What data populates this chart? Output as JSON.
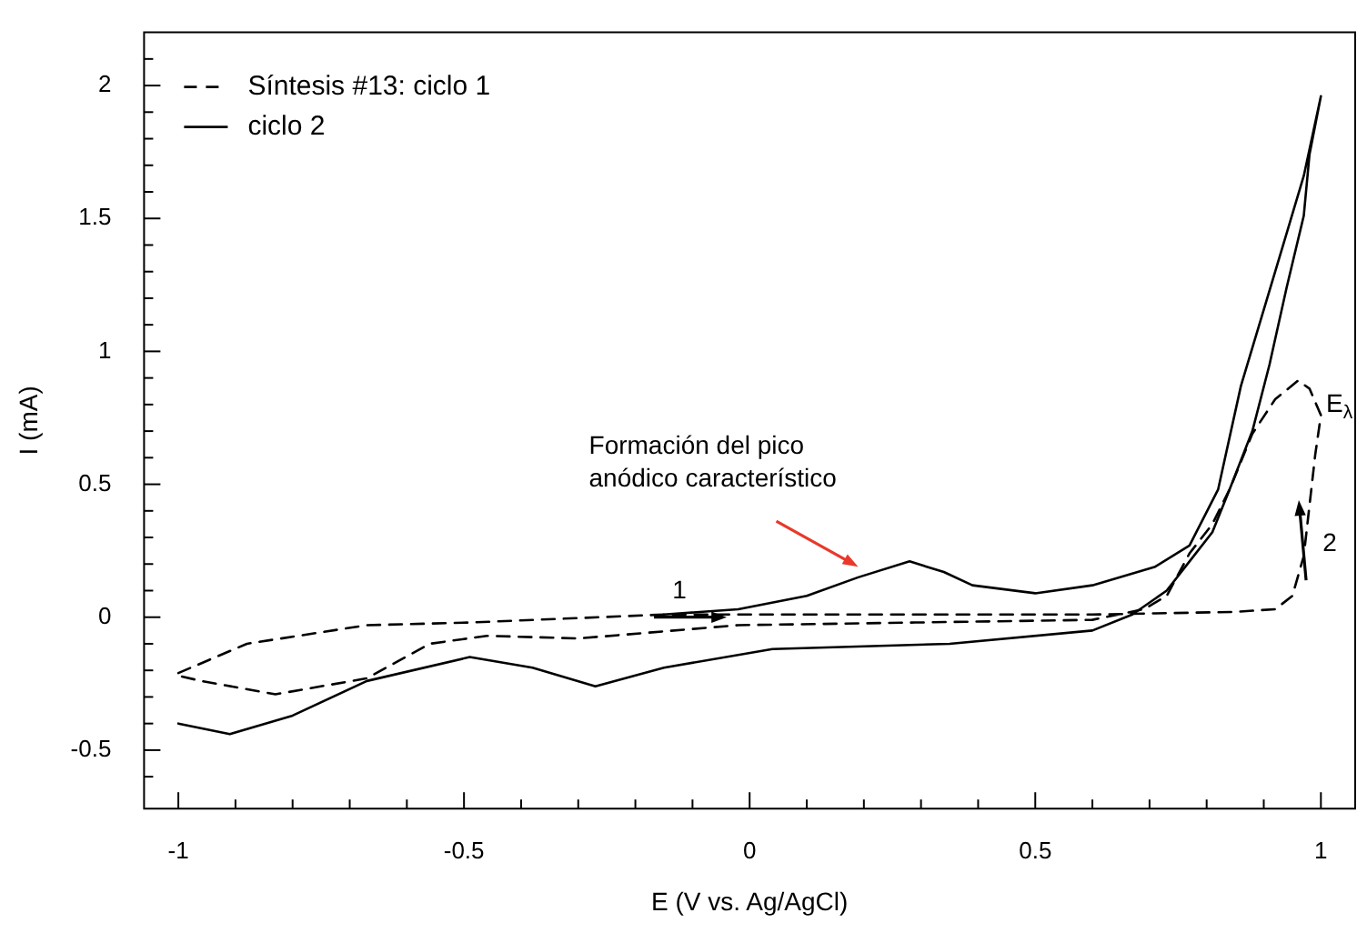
{
  "chart_data": {
    "type": "line",
    "xlabel": "E (V vs. Ag/AgCl)",
    "ylabel": "I (mA)",
    "xlim": [
      -1.06,
      1.06
    ],
    "ylim": [
      -0.72,
      2.2
    ],
    "xticks": [
      -1,
      {
        "value": -0.9,
        "label": null
      },
      {
        "value": -0.8,
        "label": null
      },
      {
        "value": -0.7,
        "label": null
      },
      {
        "value": -0.6,
        "label": null
      },
      -0.5,
      {
        "value": -0.4,
        "label": null
      },
      {
        "value": -0.3,
        "label": null
      },
      {
        "value": -0.2,
        "label": null
      },
      {
        "value": -0.1,
        "label": null
      },
      0,
      {
        "value": 0.1,
        "label": null
      },
      {
        "value": 0.2,
        "label": null
      },
      {
        "value": 0.3,
        "label": null
      },
      {
        "value": 0.4,
        "label": null
      },
      0.5,
      {
        "value": 0.6,
        "label": null
      },
      {
        "value": 0.7,
        "label": null
      },
      {
        "value": 0.8,
        "label": null
      },
      {
        "value": 0.9,
        "label": null
      },
      1
    ],
    "yticks": [
      {
        "value": -0.6,
        "label": null
      },
      -0.5,
      {
        "value": -0.4,
        "label": null
      },
      {
        "value": -0.3,
        "label": null
      },
      {
        "value": -0.2,
        "label": null
      },
      {
        "value": -0.1,
        "label": null
      },
      0,
      {
        "value": 0.1,
        "label": null
      },
      {
        "value": 0.2,
        "label": null
      },
      {
        "value": 0.3,
        "label": null
      },
      {
        "value": 0.4,
        "label": null
      },
      0.5,
      {
        "value": 0.6,
        "label": null
      },
      {
        "value": 0.7,
        "label": null
      },
      {
        "value": 0.8,
        "label": null
      },
      {
        "value": 0.9,
        "label": null
      },
      1,
      {
        "value": 1.1,
        "label": null
      },
      {
        "value": 1.2,
        "label": null
      },
      {
        "value": 1.3,
        "label": null
      },
      {
        "value": 1.4,
        "label": null
      },
      1.5,
      {
        "value": 1.6,
        "label": null
      },
      {
        "value": 1.7,
        "label": null
      },
      {
        "value": 1.8,
        "label": null
      },
      {
        "value": 1.9,
        "label": null
      },
      2,
      {
        "value": 2.1,
        "label": null
      }
    ],
    "grid": false,
    "legend": "top left",
    "marker": "none",
    "series": [
      {
        "name": "Síntesis #13: ciclo 1",
        "color": "#000000",
        "line_style": "dashed",
        "x": [
          -1,
          -0.88,
          -0.67,
          -0.49,
          -0.15,
          0.29,
          0.6,
          0.85,
          0.92,
          0.95,
          0.97,
          0.98,
          0.99,
          1.0,
          0.98,
          0.96,
          0.92,
          0.88,
          0.84,
          0.81,
          0.77,
          0.73,
          0.69,
          0.6,
          0.29,
          -0.02,
          -0.3,
          -0.46,
          -0.56,
          -0.67,
          -0.83,
          -0.96,
          -1
        ],
        "values": [
          -0.21,
          -0.1,
          -0.03,
          -0.02,
          0.01,
          0.01,
          0.01,
          0.02,
          0.03,
          0.08,
          0.23,
          0.42,
          0.61,
          0.76,
          0.86,
          0.89,
          0.82,
          0.69,
          0.48,
          0.35,
          0.24,
          0.08,
          0.03,
          -0.01,
          -0.02,
          -0.03,
          -0.08,
          -0.07,
          -0.1,
          -0.23,
          -0.29,
          -0.24,
          -0.22
        ]
      },
      {
        "name": "ciclo 2",
        "color": "#000000",
        "line_style": "solid",
        "x": [
          -0.15,
          -0.02,
          0.1,
          0.19,
          0.28,
          0.34,
          0.39,
          0.5,
          0.6,
          0.71,
          0.77,
          0.82,
          0.86,
          0.92,
          0.97,
          1.0,
          0.98,
          0.97,
          0.94,
          0.91,
          0.88,
          0.84,
          0.81,
          0.77,
          0.73,
          0.67,
          0.6,
          0.35,
          0.04,
          -0.15,
          -0.27,
          -0.38,
          -0.49,
          -0.67,
          -0.8,
          -0.91,
          -1
        ],
        "values": [
          0.01,
          0.03,
          0.08,
          0.15,
          0.21,
          0.17,
          0.12,
          0.09,
          0.12,
          0.19,
          0.27,
          0.48,
          0.87,
          1.3,
          1.66,
          1.96,
          1.74,
          1.51,
          1.24,
          0.95,
          0.7,
          0.48,
          0.32,
          0.21,
          0.1,
          0.01,
          -0.05,
          -0.1,
          -0.12,
          -0.19,
          -0.26,
          -0.19,
          -0.15,
          -0.24,
          -0.37,
          -0.44,
          -0.4
        ]
      }
    ],
    "annotations": [
      {
        "text": "Formación del pico anódico característico",
        "x": 0.19,
        "y": 0.19
      },
      {
        "text": "1",
        "x": -0.04,
        "y": 0.0
      },
      "2",
      "E$_{λ}$"
    ]
  }
}
